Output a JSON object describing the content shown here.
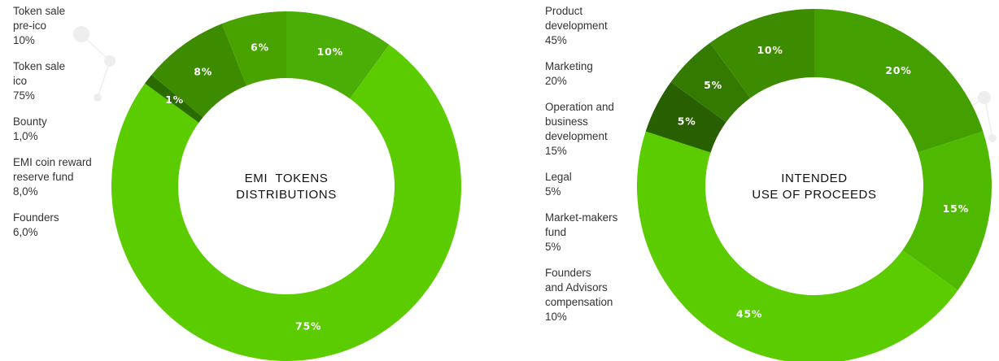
{
  "chart_data": [
    {
      "type": "pie",
      "title": "EMI  TOKENS\nDISTRIBUTIONS",
      "legend": [
        {
          "label": "Token sale\npre-ico",
          "value": "10%"
        },
        {
          "label": "Token sale\nico",
          "value": "75%"
        },
        {
          "label": "Bounty",
          "value": "1,0%"
        },
        {
          "label": "EMI coin reward\nreserve fund",
          "value": "8,0%"
        },
        {
          "label": "Founders",
          "value": "6,0%"
        }
      ],
      "slices": [
        {
          "value": 10,
          "label": "10%",
          "color": "#4aae07"
        },
        {
          "value": 75,
          "label": "75%",
          "color": "#5bcc00"
        },
        {
          "value": 1,
          "label": "1%",
          "color": "#2a6b00"
        },
        {
          "value": 8,
          "label": "8%",
          "color": "#3d8c00"
        },
        {
          "value": 6,
          "label": "6%",
          "color": "#48a300"
        }
      ]
    },
    {
      "type": "pie",
      "title": "INTENDED\nUSE OF PROCEEDS",
      "legend": [
        {
          "label": "Product\ndevelopment",
          "value": "45%"
        },
        {
          "label": "Marketing",
          "value": "20%"
        },
        {
          "label": "Operation and\nbusiness\ndevelopment",
          "value": "15%"
        },
        {
          "label": "Legal",
          "value": "5%"
        },
        {
          "label": "Market-makers\nfund",
          "value": "5%"
        },
        {
          "label": "Founders\nand Advisors\ncompensation",
          "value": "10%"
        }
      ],
      "slices": [
        {
          "value": 20,
          "label": "20%",
          "color": "#43a000"
        },
        {
          "value": 15,
          "label": "15%",
          "color": "#4fb800"
        },
        {
          "value": 45,
          "label": "45%",
          "color": "#5bcc00"
        },
        {
          "value": 5,
          "label": "5%",
          "color": "#285f00"
        },
        {
          "value": 5,
          "label": "5%",
          "color": "#347a00"
        },
        {
          "value": 10,
          "label": "10%",
          "color": "#3d8c00"
        }
      ]
    }
  ]
}
